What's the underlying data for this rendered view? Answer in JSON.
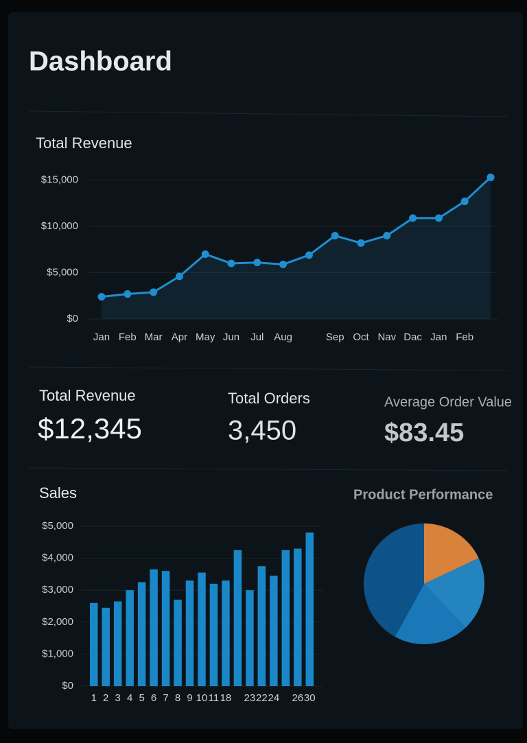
{
  "header": {
    "title": "Dashboard"
  },
  "revenue_chart": {
    "type": "line",
    "title": "Total Revenue",
    "categories": [
      "Jan",
      "Feb",
      "Mar",
      "Apr",
      "May",
      "Jun",
      "Jul",
      "Aug",
      null,
      "Sep",
      "Oct",
      "Nav",
      "Dac",
      "Jan",
      "Feb",
      null
    ],
    "values": [
      2400,
      2700,
      2900,
      4600,
      7000,
      6000,
      6100,
      5900,
      6900,
      9000,
      8200,
      9000,
      10900,
      10900,
      12700,
      15300
    ],
    "color": "#1f8fd0",
    "ylim": [
      0,
      16000
    ],
    "yticks": [
      {
        "value": 0,
        "label": "$0"
      },
      {
        "value": 5000,
        "label": "$5,000"
      },
      {
        "value": 10000,
        "label": "$10,000"
      },
      {
        "value": 15000,
        "label": "$15,000"
      }
    ],
    "grid": true
  },
  "kpis": [
    {
      "label": "Total Revenue",
      "value": "$12,345"
    },
    {
      "label": "Total Orders",
      "value": "3,450"
    },
    {
      "label": "Average Order Value",
      "value": "$83.45"
    }
  ],
  "sales_chart": {
    "type": "bar",
    "title": "Sales",
    "categories": [
      "1",
      "2",
      "3",
      "4",
      "5",
      "6",
      "7",
      "8",
      "9",
      "10",
      "11",
      "18",
      null,
      "23",
      "22",
      "24",
      null,
      "26",
      "30"
    ],
    "values": [
      2600,
      2450,
      2650,
      3000,
      3250,
      3650,
      3600,
      2700,
      3300,
      3550,
      3200,
      3300,
      4250,
      3000,
      3750,
      3450,
      4250,
      4300,
      4800
    ],
    "color": "#1a87c8",
    "ylim": [
      0,
      5000
    ],
    "yticks": [
      {
        "value": 0,
        "label": "$0"
      },
      {
        "value": 1000,
        "label": "$1,000"
      },
      {
        "value": 2000,
        "label": "$2,000"
      },
      {
        "value": 3000,
        "label": "$3,000"
      },
      {
        "value": 4000,
        "label": "$4,000"
      },
      {
        "value": 5000,
        "label": "$5,000"
      }
    ],
    "grid": true
  },
  "pie_chart": {
    "type": "pie",
    "title": "Product Performance",
    "values": [
      18,
      20,
      20,
      42
    ],
    "colors": [
      "#d9823b",
      "#2384c0",
      "#1a78b8",
      "#0d5288"
    ]
  }
}
